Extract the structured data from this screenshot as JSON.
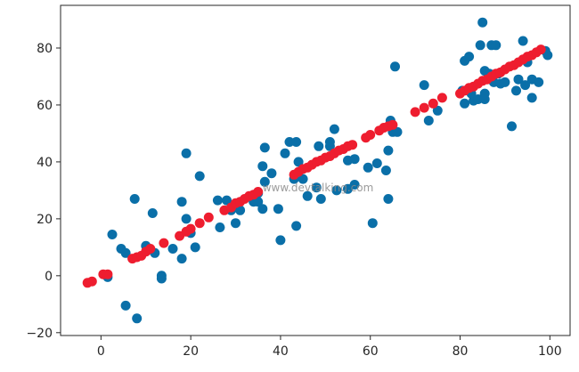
{
  "watermark": "www.devtalking.com",
  "chart_data": {
    "type": "scatter",
    "title": "",
    "xlabel": "",
    "ylabel": "",
    "xlim": [
      -9,
      104.5
    ],
    "ylim": [
      -21,
      95
    ],
    "xticks": [
      0,
      20,
      40,
      60,
      80,
      100
    ],
    "yticks": [
      -20,
      0,
      20,
      40,
      60,
      80
    ],
    "grid": false,
    "legend": "none",
    "series": [
      {
        "color": "#0a6fa8",
        "marker": "circle",
        "points": [
          [
            1.5,
            -0.5
          ],
          [
            2.5,
            14.5
          ],
          [
            4.5,
            9.5
          ],
          [
            5.5,
            8
          ],
          [
            5.5,
            -10.5
          ],
          [
            7.5,
            27
          ],
          [
            8,
            -15
          ],
          [
            10,
            10.5
          ],
          [
            11.5,
            22
          ],
          [
            12,
            8
          ],
          [
            13.5,
            0
          ],
          [
            13.5,
            -1
          ],
          [
            16,
            9.5
          ],
          [
            18,
            26
          ],
          [
            18,
            6
          ],
          [
            19,
            43
          ],
          [
            19,
            20
          ],
          [
            20,
            15
          ],
          [
            21,
            10
          ],
          [
            22,
            35
          ],
          [
            26,
            26.5
          ],
          [
            26.5,
            17
          ],
          [
            28,
            26.5
          ],
          [
            29,
            23
          ],
          [
            30,
            18.5
          ],
          [
            31,
            23
          ],
          [
            34,
            26
          ],
          [
            35,
            29
          ],
          [
            35,
            26
          ],
          [
            36,
            23.5
          ],
          [
            36,
            38.5
          ],
          [
            36.5,
            45
          ],
          [
            36.5,
            33
          ],
          [
            38,
            36
          ],
          [
            39.5,
            23.5
          ],
          [
            40,
            12.5
          ],
          [
            41,
            43
          ],
          [
            42,
            47
          ],
          [
            43,
            34
          ],
          [
            43.5,
            47
          ],
          [
            43.5,
            17.5
          ],
          [
            44,
            40
          ],
          [
            45,
            34
          ],
          [
            46,
            28
          ],
          [
            48,
            31
          ],
          [
            48.5,
            45.5
          ],
          [
            49,
            27
          ],
          [
            51,
            45.5
          ],
          [
            51,
            47
          ],
          [
            52,
            51.5
          ],
          [
            52.5,
            30
          ],
          [
            55,
            40.5
          ],
          [
            55,
            30.5
          ],
          [
            56.5,
            32
          ],
          [
            56.5,
            41
          ],
          [
            59.5,
            38
          ],
          [
            60.5,
            18.5
          ],
          [
            61.5,
            39.5
          ],
          [
            63.5,
            37
          ],
          [
            64,
            44
          ],
          [
            64,
            27
          ],
          [
            64.5,
            54.5
          ],
          [
            65,
            50.5
          ],
          [
            65.5,
            73.5
          ],
          [
            66,
            50.5
          ],
          [
            72,
            67
          ],
          [
            73,
            54.5
          ],
          [
            75,
            58
          ],
          [
            80.5,
            65
          ],
          [
            81,
            60.5
          ],
          [
            81,
            75.5
          ],
          [
            82,
            77
          ],
          [
            82.5,
            64
          ],
          [
            83,
            61.5
          ],
          [
            84,
            62
          ],
          [
            84.5,
            81
          ],
          [
            85,
            89
          ],
          [
            85.5,
            72
          ],
          [
            85.5,
            64
          ],
          [
            85.5,
            62
          ],
          [
            86.5,
            71
          ],
          [
            87,
            81
          ],
          [
            87.5,
            68
          ],
          [
            88,
            81
          ],
          [
            88.5,
            71
          ],
          [
            89,
            67.5
          ],
          [
            90,
            68
          ],
          [
            91.5,
            52.5
          ],
          [
            92.5,
            65
          ],
          [
            93,
            69
          ],
          [
            94,
            82.5
          ],
          [
            94.5,
            67
          ],
          [
            95,
            75
          ],
          [
            96,
            69
          ],
          [
            96,
            62.5
          ],
          [
            97.5,
            68
          ],
          [
            99,
            79
          ],
          [
            99.5,
            77.5
          ]
        ]
      },
      {
        "color": "#ee1d2f",
        "marker": "circle",
        "points": [
          [
            -3,
            -2.5
          ],
          [
            -2,
            -2
          ],
          [
            0.5,
            0.5
          ],
          [
            1.5,
            0.5
          ],
          [
            7,
            6
          ],
          [
            8,
            6.5
          ],
          [
            9,
            7
          ],
          [
            10,
            8.5
          ],
          [
            11,
            9.5
          ],
          [
            14,
            11.5
          ],
          [
            17.5,
            14
          ],
          [
            19,
            15.5
          ],
          [
            20,
            16.5
          ],
          [
            22,
            18.5
          ],
          [
            24,
            20.5
          ],
          [
            27.5,
            23
          ],
          [
            29,
            24
          ],
          [
            30,
            25.5
          ],
          [
            31,
            26
          ],
          [
            32,
            27
          ],
          [
            33,
            28
          ],
          [
            34,
            28.5
          ],
          [
            35,
            29.5
          ],
          [
            43,
            35.5
          ],
          [
            44,
            36.5
          ],
          [
            45,
            37.5
          ],
          [
            46,
            38
          ],
          [
            47,
            39
          ],
          [
            48,
            40
          ],
          [
            49,
            40.5
          ],
          [
            50,
            41.5
          ],
          [
            51,
            42
          ],
          [
            52,
            43
          ],
          [
            53,
            44
          ],
          [
            54,
            44.5
          ],
          [
            55,
            45.5
          ],
          [
            56,
            46
          ],
          [
            59,
            48.5
          ],
          [
            60,
            49.5
          ],
          [
            62,
            51
          ],
          [
            63,
            52
          ],
          [
            64,
            52.5
          ],
          [
            65,
            53
          ],
          [
            70,
            57.5
          ],
          [
            72,
            59
          ],
          [
            74,
            60.5
          ],
          [
            76,
            62.5
          ],
          [
            80,
            64
          ],
          [
            81,
            65
          ],
          [
            82,
            66
          ],
          [
            83,
            66.5
          ],
          [
            84,
            67.5
          ],
          [
            85,
            68.5
          ],
          [
            86,
            69
          ],
          [
            87,
            70
          ],
          [
            88,
            71
          ],
          [
            89,
            71.5
          ],
          [
            90,
            72.5
          ],
          [
            91,
            73.5
          ],
          [
            92,
            74
          ],
          [
            93,
            75
          ],
          [
            94,
            76
          ],
          [
            95,
            77
          ],
          [
            96,
            77.5
          ],
          [
            97,
            78.5
          ],
          [
            98,
            79.5
          ]
        ]
      }
    ]
  }
}
